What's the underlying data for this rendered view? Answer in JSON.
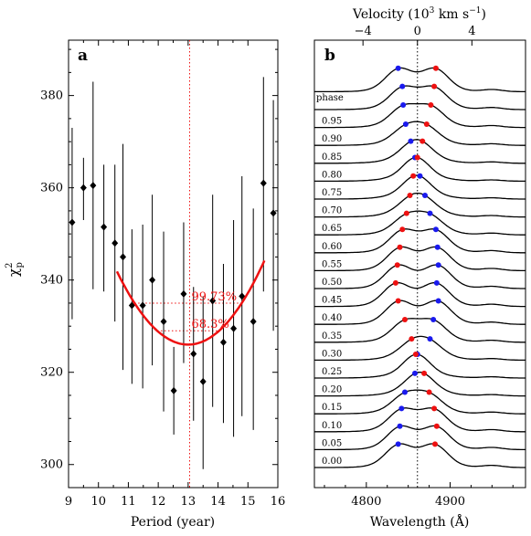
{
  "chart_data": [
    {
      "type": "scatter",
      "panel_label": "a",
      "xlabel": "Period (year)",
      "ylabel": "χ²_p",
      "ylabel_main": "χ",
      "ylabel_sup": "2",
      "ylabel_sub": "p",
      "xlim": [
        9,
        16
      ],
      "ylim": [
        295,
        392
      ],
      "xticks": [
        "9",
        "10",
        "11",
        "12",
        "13",
        "14",
        "15",
        "16"
      ],
      "yticks": [
        "300",
        "320",
        "340",
        "360",
        "380"
      ],
      "series": [
        {
          "kind": "errorbar",
          "color": "#000000",
          "points": [
            {
              "x": 9.12,
              "y": 352.5,
              "lo": 331.5,
              "hi": 373.0
            },
            {
              "x": 9.5,
              "y": 360.0,
              "lo": 353.0,
              "hi": 366.5
            },
            {
              "x": 9.82,
              "y": 360.5,
              "lo": 338.0,
              "hi": 383.0
            },
            {
              "x": 10.18,
              "y": 351.5,
              "lo": 337.5,
              "hi": 365.0
            },
            {
              "x": 10.55,
              "y": 348.0,
              "lo": 331.0,
              "hi": 365.0
            },
            {
              "x": 10.82,
              "y": 345.0,
              "lo": 320.5,
              "hi": 369.5
            },
            {
              "x": 11.12,
              "y": 334.5,
              "lo": 317.5,
              "hi": 351.0
            },
            {
              "x": 11.48,
              "y": 334.5,
              "lo": 316.5,
              "hi": 352.0
            },
            {
              "x": 11.8,
              "y": 340.0,
              "lo": 321.5,
              "hi": 358.5
            },
            {
              "x": 12.18,
              "y": 331.0,
              "lo": 311.5,
              "hi": 350.5
            },
            {
              "x": 12.52,
              "y": 316.0,
              "lo": 306.5,
              "hi": 325.5
            },
            {
              "x": 12.85,
              "y": 337.0,
              "lo": 322.0,
              "hi": 352.5
            },
            {
              "x": 13.18,
              "y": 324.0,
              "lo": 309.5,
              "hi": 338.5
            },
            {
              "x": 13.5,
              "y": 318.0,
              "lo": 299.0,
              "hi": 336.5
            },
            {
              "x": 13.82,
              "y": 335.5,
              "lo": 312.5,
              "hi": 358.5
            },
            {
              "x": 14.18,
              "y": 326.5,
              "lo": 309.0,
              "hi": 343.5
            },
            {
              "x": 14.52,
              "y": 329.5,
              "lo": 306.0,
              "hi": 353.0
            },
            {
              "x": 14.8,
              "y": 336.5,
              "lo": 310.5,
              "hi": 362.5
            },
            {
              "x": 15.18,
              "y": 331.0,
              "lo": 307.5,
              "hi": 355.5
            },
            {
              "x": 15.52,
              "y": 361.0,
              "lo": 337.5,
              "hi": 384.0
            },
            {
              "x": 15.85,
              "y": 354.5,
              "lo": 329.0,
              "hi": 379.0
            }
          ]
        },
        {
          "kind": "fit",
          "color": "#ee1111",
          "vertex_x": 13.0,
          "vertex_y": 326.0,
          "curvature": 2.8,
          "x_range": [
            10.62,
            15.55
          ]
        }
      ],
      "annotations": [
        {
          "text": "99.73%",
          "y": 335.0,
          "x_label": 13.05
        },
        {
          "text": "68.3%",
          "y": 329.0,
          "x_label": 13.05
        }
      ],
      "vline_x": 13.05
    },
    {
      "type": "line",
      "panel_label": "b",
      "xlabel": "Wavelength (Å)",
      "top_axis_label": "Velocity (10³ km s⁻¹)",
      "top_axis_main": "Velocity (10",
      "top_axis_exp1": "3",
      "top_axis_mid": " km s",
      "top_axis_exp2": "−1",
      "top_axis_end": ")",
      "xlim": [
        4738,
        4990
      ],
      "xticks": [
        "4800",
        "4900"
      ],
      "xtick_values": [
        4800,
        4900
      ],
      "top_ticks": [
        "−4",
        "0",
        "4"
      ],
      "top_tick_wavelengths": [
        4796,
        4861,
        4926
      ],
      "rest_wavelength": 4861,
      "phase_header": "phase",
      "profiles": [
        {
          "phase": "0.00",
          "blue_x": 4838,
          "red_x": 4882
        },
        {
          "phase": "0.05",
          "blue_x": 4840,
          "red_x": 4884
        },
        {
          "phase": "0.10",
          "blue_x": 4842,
          "red_x": 4881
        },
        {
          "phase": "0.15",
          "blue_x": 4846,
          "red_x": 4875
        },
        {
          "phase": "0.20",
          "blue_x": 4858,
          "red_x": 4869
        },
        {
          "phase": "0.25",
          "blue_x": 4861,
          "red_x": 4859
        },
        {
          "phase": "0.30",
          "blue_x": 4876,
          "red_x": 4854
        },
        {
          "phase": "0.35",
          "blue_x": 4880,
          "red_x": 4846
        },
        {
          "phase": "0.40",
          "blue_x": 4886,
          "red_x": 4838
        },
        {
          "phase": "0.45",
          "blue_x": 4884,
          "red_x": 4835
        },
        {
          "phase": "0.50",
          "blue_x": 4886,
          "red_x": 4837
        },
        {
          "phase": "0.55",
          "blue_x": 4885,
          "red_x": 4840
        },
        {
          "phase": "0.60",
          "blue_x": 4883,
          "red_x": 4843
        },
        {
          "phase": "0.65",
          "blue_x": 4876,
          "red_x": 4848
        },
        {
          "phase": "0.70",
          "blue_x": 4870,
          "red_x": 4852
        },
        {
          "phase": "0.75",
          "blue_x": 4864,
          "red_x": 4856
        },
        {
          "phase": "0.80",
          "blue_x": 4858,
          "red_x": 4861
        },
        {
          "phase": "0.85",
          "blue_x": 4853,
          "red_x": 4867
        },
        {
          "phase": "0.90",
          "blue_x": 4847,
          "red_x": 4872
        },
        {
          "phase": "0.95",
          "blue_x": 4844,
          "red_x": 4877
        },
        {
          "phase": "",
          "blue_x": 4843,
          "red_x": 4881
        },
        {
          "phase": "",
          "blue_x": 4838,
          "red_x": 4883
        }
      ],
      "colors": {
        "blue": "#1a1aee",
        "red": "#ee1111",
        "line": "#000000"
      }
    }
  ]
}
